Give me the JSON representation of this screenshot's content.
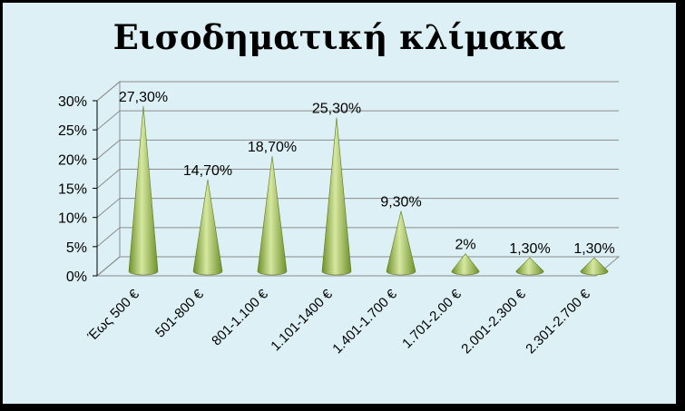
{
  "chart_data": {
    "type": "bar",
    "style": "3d-cone",
    "title": "Εισοδηματική κλίμακα",
    "categories": [
      "Έως 500 €",
      "501-800 €",
      "801-1.100 €",
      "1.101-1400 €",
      "1.401-1.700 €",
      "1.701-2.00 €",
      "2.001-2.300 €",
      "2.301-2.700 €"
    ],
    "values": [
      27.3,
      14.7,
      18.7,
      25.3,
      9.3,
      2,
      1.3,
      1.3
    ],
    "data_labels": [
      "27,30%",
      "14,70%",
      "18,70%",
      "25,30%",
      "9,30%",
      "2%",
      "1,30%",
      "1,30%"
    ],
    "yticks": [
      "0%",
      "5%",
      "10%",
      "15%",
      "20%",
      "25%",
      "30%"
    ],
    "ylim": [
      0,
      30
    ],
    "grid": true,
    "legend": "none",
    "colors": {
      "background": "#dcf0f5",
      "frame": "#000000",
      "cone_light": "#d6e8a0",
      "cone_dark": "#6f8f2a",
      "grid": "#8c8c8c"
    }
  }
}
